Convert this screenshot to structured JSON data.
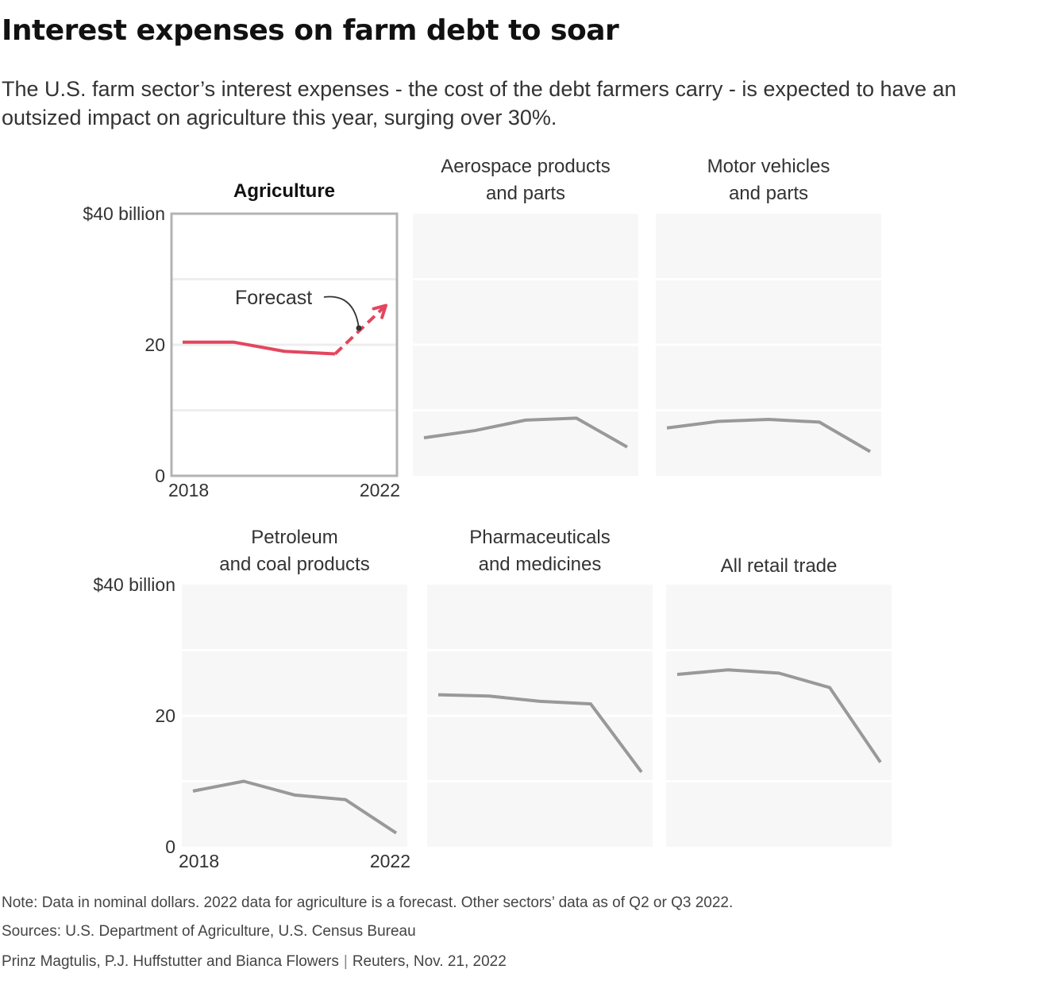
{
  "header": {
    "title": "Interest expenses on farm debt to soar",
    "subtitle": "The U.S. farm sector’s interest expenses - the cost of the debt farmers carry - is expected to have an outsized impact on agriculture this year, surging over 30%."
  },
  "annotation": {
    "forecast_label": "Forecast"
  },
  "colors": {
    "agriculture": "#e3465e",
    "other": "#999999",
    "panel_bg": "#f7f7f7",
    "grid": "#ffffff",
    "highlight_border": "#b3b3b3"
  },
  "chart_data": {
    "type": "line",
    "x": [
      2018,
      2019,
      2020,
      2021,
      2022
    ],
    "x_tick_labels": [
      "2018",
      "2022"
    ],
    "y_tick_labels": [
      "$40 billion",
      "20",
      "0"
    ],
    "ylim": [
      0,
      40
    ],
    "grid": true,
    "panels": [
      {
        "name": "Agriculture",
        "highlight": true,
        "forecast_from_index": 3,
        "values": [
          20.4,
          20.4,
          19.0,
          18.6,
          26.0
        ]
      },
      {
        "name": "Aerospace products and parts",
        "highlight": false,
        "values": [
          5.8,
          6.9,
          8.5,
          8.8,
          4.4
        ]
      },
      {
        "name": "Motor vehicles and parts",
        "highlight": false,
        "values": [
          7.3,
          8.3,
          8.6,
          8.2,
          3.7
        ]
      },
      {
        "name": "Petroleum and coal products",
        "highlight": false,
        "values": [
          8.5,
          10.0,
          7.9,
          7.2,
          2.1
        ]
      },
      {
        "name": "Pharmaceuticals and medicines",
        "highlight": false,
        "values": [
          23.2,
          23.0,
          22.2,
          21.8,
          11.4
        ]
      },
      {
        "name": "All retail trade",
        "highlight": false,
        "values": [
          26.3,
          27.0,
          26.5,
          24.3,
          12.9
        ]
      }
    ]
  },
  "footer": {
    "note": "Note: Data in nominal dollars. 2022 data for agriculture is a forecast. Other sectors’ data as of Q2 or Q3 2022.",
    "sources": "Sources: U.S. Department of Agriculture, U.S. Census Bureau",
    "authors": "Prinz Magtulis, P.J. Huffstutter and Bianca Flowers",
    "separator": "|",
    "outlet": "Reuters, Nov. 21, 2022"
  }
}
